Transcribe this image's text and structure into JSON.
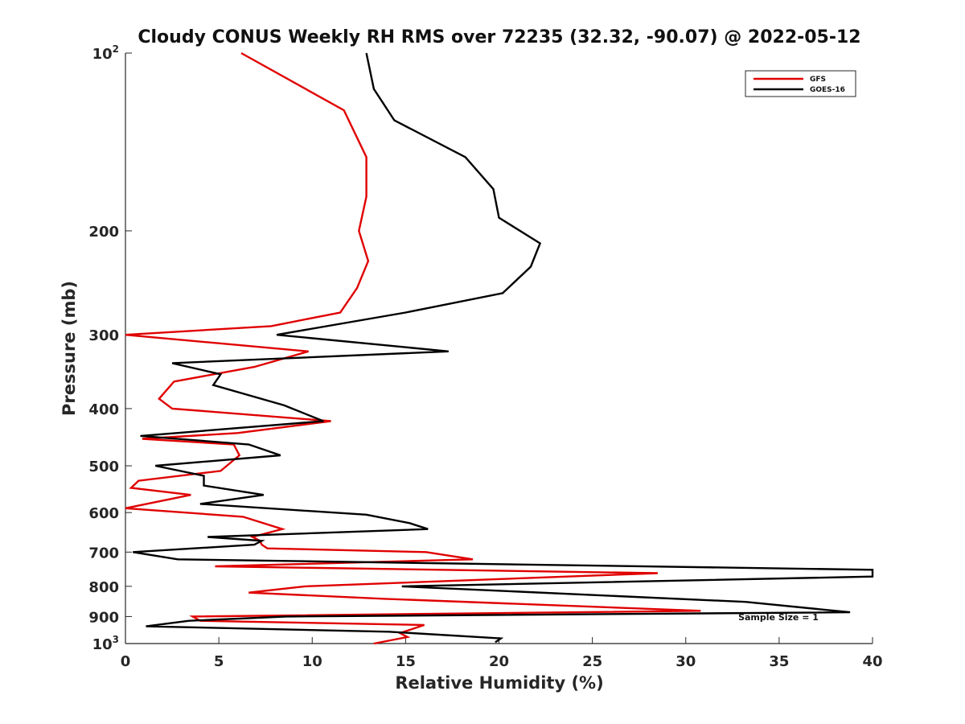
{
  "chart_data": {
    "type": "line",
    "title": "Cloudy CONUS Weekly RH RMS over 72235 (32.32, -90.07) @ 2022-05-12",
    "xlabel": "Relative Humidity (%)",
    "ylabel": "Pressure (mb)",
    "xlim": [
      0,
      40
    ],
    "ylim": [
      100,
      1000
    ],
    "yscale": "log",
    "y_reversed": true,
    "x_ticks": [
      "0",
      "5",
      "10",
      "15",
      "20",
      "25",
      "30",
      "35",
      "40"
    ],
    "y_ticks": [
      {
        "value": 100,
        "base": "10",
        "exp": "2"
      },
      {
        "value": 200,
        "label": "200"
      },
      {
        "value": 300,
        "label": "300"
      },
      {
        "value": 400,
        "label": "400"
      },
      {
        "value": 500,
        "label": "500"
      },
      {
        "value": 600,
        "label": "600"
      },
      {
        "value": 700,
        "label": "700"
      },
      {
        "value": 800,
        "label": "800"
      },
      {
        "value": 900,
        "label": "900"
      },
      {
        "value": 1000,
        "base": "10",
        "exp": "3"
      }
    ],
    "legend_position": "top-right",
    "annotation": "Sample Size = 1",
    "series": [
      {
        "name": "GFS",
        "color": "#e00000",
        "points": [
          [
            6.2,
            100
          ],
          [
            11.7,
            125
          ],
          [
            12.9,
            150
          ],
          [
            12.9,
            175
          ],
          [
            12.5,
            200
          ],
          [
            13.0,
            225
          ],
          [
            12.4,
            250
          ],
          [
            11.5,
            275
          ],
          [
            7.8,
            290
          ],
          [
            0.0,
            300
          ],
          [
            9.8,
            320
          ],
          [
            6.9,
            340
          ],
          [
            2.6,
            360
          ],
          [
            1.8,
            385
          ],
          [
            2.5,
            400
          ],
          [
            11.0,
            420
          ],
          [
            6.0,
            440
          ],
          [
            0.9,
            450
          ],
          [
            5.8,
            460
          ],
          [
            6.1,
            480
          ],
          [
            5.1,
            510
          ],
          [
            0.7,
            530
          ],
          [
            0.3,
            545
          ],
          [
            3.5,
            560
          ],
          [
            0.0,
            590
          ],
          [
            6.3,
            610
          ],
          [
            8.4,
            640
          ],
          [
            6.8,
            660
          ],
          [
            7.2,
            670
          ],
          [
            7.3,
            680
          ],
          [
            7.6,
            690
          ],
          [
            16.1,
            700
          ],
          [
            18.6,
            720
          ],
          [
            4.8,
            740
          ],
          [
            28.5,
            760
          ],
          [
            9.6,
            800
          ],
          [
            6.6,
            820
          ],
          [
            13.9,
            840
          ],
          [
            30.8,
            880
          ],
          [
            3.6,
            900
          ],
          [
            4.0,
            915
          ],
          [
            16.0,
            930
          ],
          [
            14.7,
            960
          ],
          [
            15.1,
            975
          ],
          [
            13.3,
            1000
          ]
        ]
      },
      {
        "name": "GOES-16",
        "color": "#000000",
        "points": [
          [
            12.9,
            100
          ],
          [
            13.3,
            115
          ],
          [
            14.4,
            130
          ],
          [
            18.2,
            150
          ],
          [
            19.7,
            170
          ],
          [
            20.0,
            190
          ],
          [
            22.2,
            210
          ],
          [
            21.7,
            230
          ],
          [
            20.2,
            255
          ],
          [
            15.0,
            275
          ],
          [
            8.1,
            300
          ],
          [
            17.3,
            320
          ],
          [
            2.5,
            335
          ],
          [
            5.1,
            350
          ],
          [
            4.7,
            365
          ],
          [
            8.5,
            395
          ],
          [
            10.6,
            420
          ],
          [
            0.8,
            445
          ],
          [
            6.6,
            460
          ],
          [
            8.3,
            480
          ],
          [
            1.6,
            500
          ],
          [
            4.2,
            520
          ],
          [
            4.2,
            540
          ],
          [
            7.4,
            560
          ],
          [
            4.0,
            580
          ],
          [
            12.9,
            605
          ],
          [
            15.2,
            625
          ],
          [
            16.2,
            640
          ],
          [
            4.4,
            660
          ],
          [
            7.3,
            670
          ],
          [
            6.9,
            680
          ],
          [
            0.4,
            700
          ],
          [
            2.8,
            720
          ],
          [
            40.0,
            750
          ],
          [
            40.0,
            770
          ],
          [
            14.8,
            800
          ],
          [
            33.2,
            850
          ],
          [
            38.8,
            885
          ],
          [
            8.6,
            900
          ],
          [
            3.4,
            915
          ],
          [
            1.1,
            935
          ],
          [
            14.1,
            955
          ],
          [
            20.1,
            980
          ],
          [
            19.8,
            995
          ]
        ]
      }
    ]
  }
}
